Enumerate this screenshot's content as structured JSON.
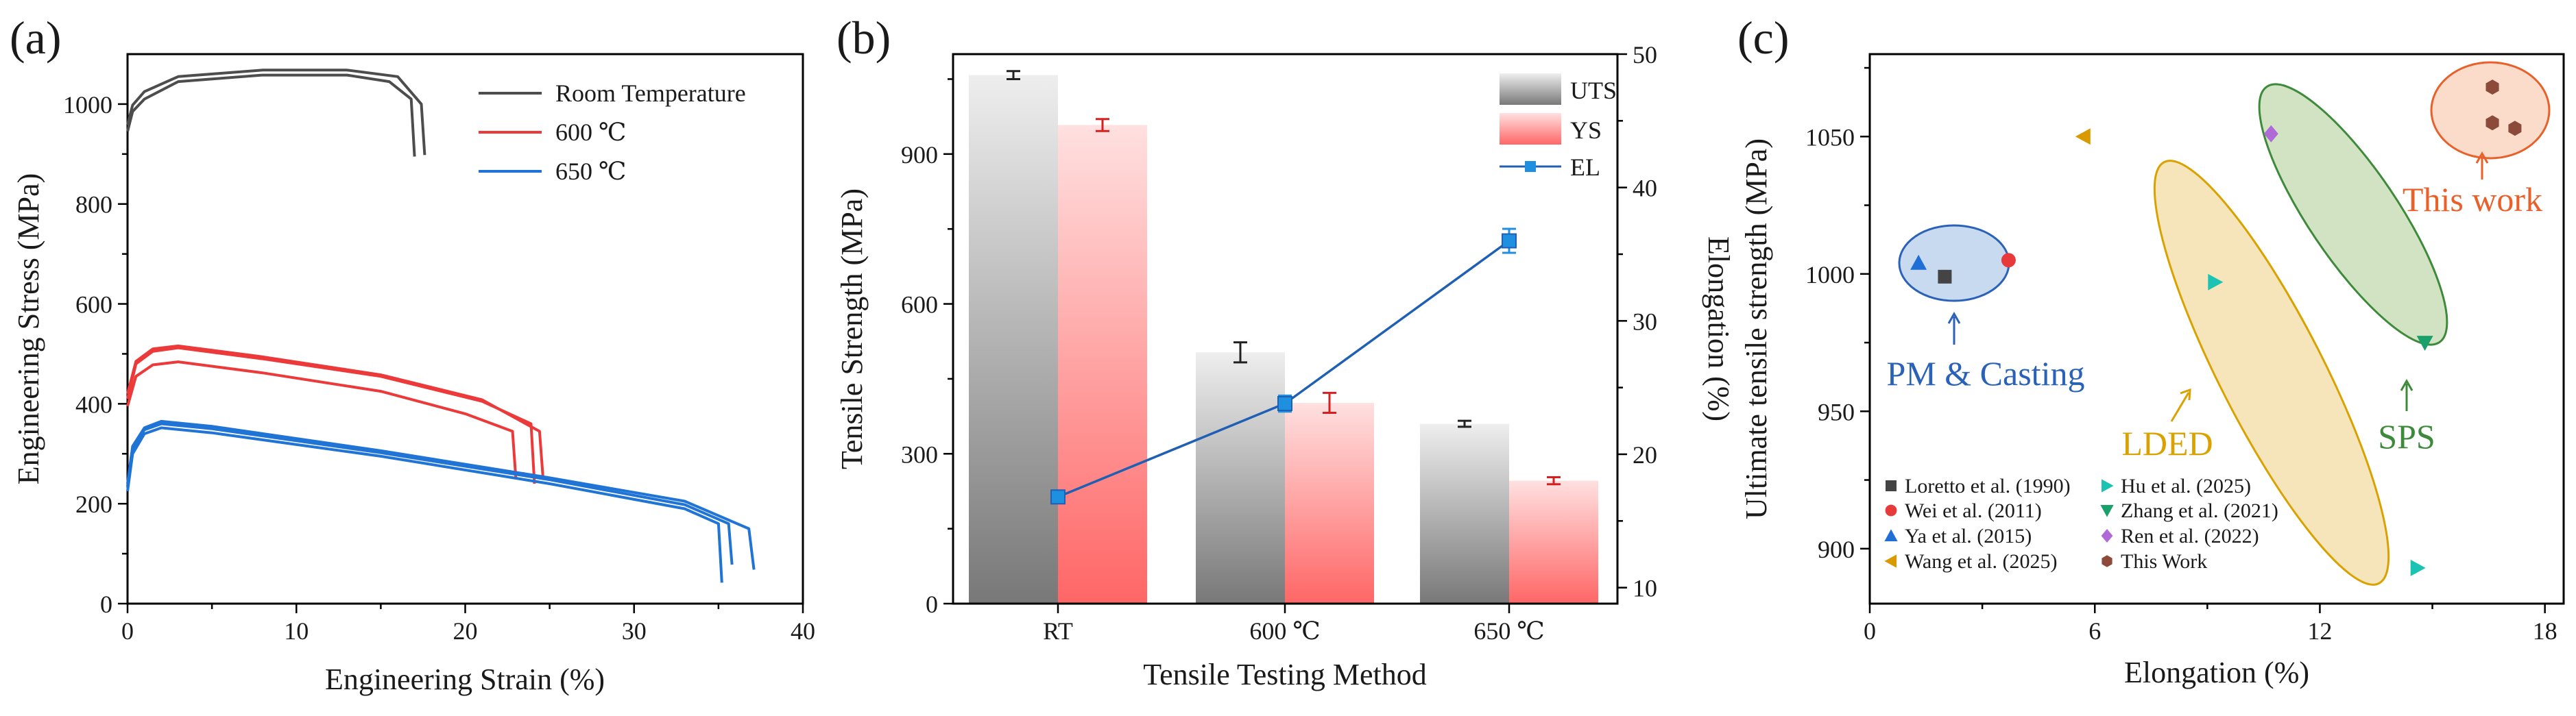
{
  "figure": {
    "panels": [
      "(a)",
      "(b)",
      "(c)"
    ]
  },
  "colors": {
    "room": "#4d4d4d",
    "t600": "#ec3a3a",
    "t650": "#1f74d6",
    "uts": "#7f7f7f",
    "ys": "#ff6e6e",
    "el": "#1f5fb4",
    "pm": "#2a62b8",
    "lded": "#d9a200",
    "sps": "#3d8a3a",
    "thiswork": "#e8602a",
    "hex": "#8b4a3a"
  },
  "chart_data": [
    {
      "type": "line",
      "panel": "(a)",
      "xlabel": "Engineering Strain (%)",
      "ylabel": "Engineering Stress (MPa)",
      "xlim": [
        0,
        40
      ],
      "ylim": [
        0,
        1100
      ],
      "xticks": [
        "0",
        "10",
        "20",
        "30",
        "40"
      ],
      "yticks": [
        "0",
        "200",
        "400",
        "600",
        "800",
        "1000"
      ],
      "legend": [
        "Room Temperature",
        "600 ℃",
        "650 ℃"
      ],
      "series": [
        {
          "name": "Room Temperature",
          "curves": [
            {
              "x": [
                0,
                0.3,
                1,
                3,
                8,
                13,
                15.5,
                16.8,
                17.0
              ],
              "y": [
                945,
                985,
                1010,
                1045,
                1058,
                1058,
                1045,
                1010,
                895
              ]
            },
            {
              "x": [
                0,
                0.3,
                1,
                3,
                8,
                13,
                16,
                17.4,
                17.6
              ],
              "y": [
                958,
                998,
                1025,
                1055,
                1068,
                1068,
                1055,
                1000,
                898
              ]
            }
          ]
        },
        {
          "name": "600 ℃",
          "curves": [
            {
              "x": [
                0,
                0.5,
                1.5,
                3,
                8,
                15,
                20,
                22.8,
                23.0
              ],
              "y": [
                395,
                455,
                478,
                484,
                462,
                425,
                380,
                345,
                250
              ]
            },
            {
              "x": [
                0,
                0.5,
                1.5,
                3,
                8,
                15,
                21,
                23.9,
                24.1
              ],
              "y": [
                410,
                480,
                505,
                512,
                490,
                455,
                405,
                360,
                240
              ]
            },
            {
              "x": [
                0,
                0.5,
                1.5,
                3,
                8,
                15,
                21,
                24.4,
                24.6
              ],
              "y": [
                420,
                485,
                510,
                516,
                494,
                458,
                408,
                345,
                255
              ]
            }
          ]
        },
        {
          "name": "650 ℃",
          "curves": [
            {
              "x": [
                0,
                0.3,
                1,
                2,
                5,
                15,
                25,
                33,
                35,
                35.2
              ],
              "y": [
                225,
                300,
                340,
                352,
                342,
                295,
                240,
                190,
                160,
                42
              ]
            },
            {
              "x": [
                0,
                0.3,
                1,
                2,
                5,
                15,
                25,
                33,
                35.6,
                35.8
              ],
              "y": [
                235,
                310,
                348,
                360,
                350,
                302,
                248,
                198,
                160,
                78
              ]
            },
            {
              "x": [
                0,
                0.3,
                1,
                2,
                5,
                15,
                25,
                33,
                36.8,
                37.1
              ],
              "y": [
                240,
                315,
                352,
                365,
                355,
                306,
                252,
                205,
                150,
                68
              ]
            }
          ]
        }
      ]
    },
    {
      "type": "bar",
      "panel": "(b)",
      "xlabel": "Tensile Testing Method",
      "ylabel": "Tensile Strength (MPa)",
      "y2label": "Elongation (%)",
      "categories": [
        "RT",
        "600 ℃",
        "650 ℃"
      ],
      "ylim": [
        0,
        1100
      ],
      "y2lim": [
        8.8,
        50
      ],
      "yticks": [
        "0",
        "300",
        "600",
        "900"
      ],
      "y2ticks": [
        "10",
        "20",
        "30",
        "40",
        "50"
      ],
      "legend": [
        "UTS",
        "YS",
        "EL"
      ],
      "series": [
        {
          "name": "UTS",
          "values": [
            1058,
            503,
            360
          ],
          "errors": [
            8,
            20,
            6
          ]
        },
        {
          "name": "YS",
          "values": [
            958,
            402,
            246
          ],
          "errors": [
            12,
            20,
            7
          ]
        },
        {
          "name": "EL",
          "axis": "right",
          "values": [
            16.8,
            23.8,
            36.0
          ],
          "errors": [
            0.4,
            0.6,
            0.9
          ]
        }
      ]
    },
    {
      "type": "scatter",
      "panel": "(c)",
      "xlabel": "Elongation (%)",
      "ylabel": "Ultimate tensile strength (MPa)",
      "xlim": [
        0,
        18.5
      ],
      "ylim": [
        880,
        1080
      ],
      "xticks": [
        "0",
        "6",
        "12",
        "18"
      ],
      "yticks": [
        "900",
        "950",
        "1000",
        "1050"
      ],
      "series": [
        {
          "name": "Loretto et al. (1990)",
          "marker": "square",
          "color": "#444444",
          "x": [
            2.0
          ],
          "y": [
            999
          ]
        },
        {
          "name": "Wei et al. (2011)",
          "marker": "circle",
          "color": "#e83a3a",
          "x": [
            3.7
          ],
          "y": [
            1005
          ]
        },
        {
          "name": "Ya et al. (2015)",
          "marker": "triangle-up",
          "color": "#1f6fd6",
          "x": [
            1.3
          ],
          "y": [
            1004
          ]
        },
        {
          "name": "Wang et al. (2025)",
          "marker": "triangle-left",
          "color": "#d99a00",
          "x": [
            5.7
          ],
          "y": [
            1050
          ]
        },
        {
          "name": "Hu et al. (2025)",
          "marker": "triangle-right",
          "color": "#1bc3b3",
          "x": [
            9.2,
            14.6
          ],
          "y": [
            997,
            893
          ]
        },
        {
          "name": "Zhang et al. (2021)",
          "marker": "triangle-down",
          "color": "#1aa06a",
          "x": [
            14.8
          ],
          "y": [
            975
          ]
        },
        {
          "name": "Ren et al. (2022)",
          "marker": "diamond",
          "color": "#b06ad8",
          "x": [
            10.7
          ],
          "y": [
            1051
          ]
        },
        {
          "name": "This Work",
          "marker": "hexagon",
          "color": "#8b4a3a",
          "x": [
            16.6,
            16.6,
            17.2
          ],
          "y": [
            1068,
            1055,
            1053
          ]
        }
      ],
      "annotations": [
        "PM & Casting",
        "LDED",
        "SPS",
        "This work"
      ]
    }
  ]
}
